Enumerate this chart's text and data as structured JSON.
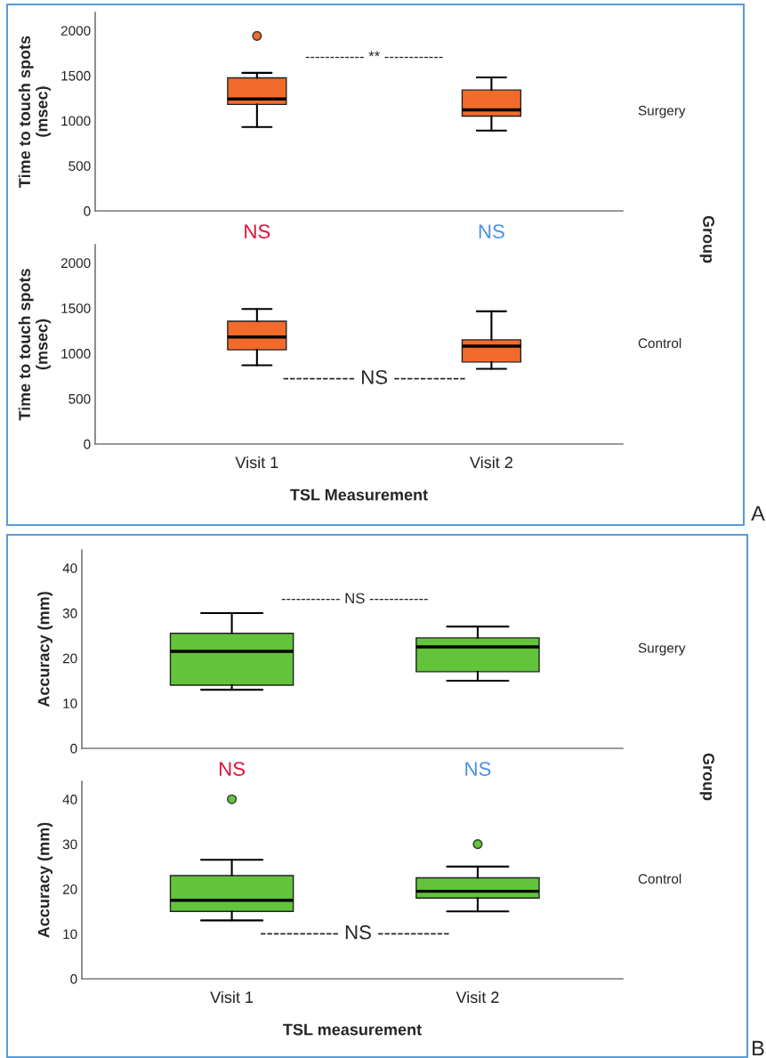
{
  "chart_data": [
    {
      "type": "box",
      "categories": [
        null,
        null
      ],
      "ylabel": "Time to touch spots\n(msec)",
      "ylim": [
        0,
        2200
      ],
      "yticks": [
        0,
        500,
        1000,
        1500,
        2000
      ],
      "tick_labels": "y",
      "grid": false,
      "series": [
        {
          "color": "#f26b2a",
          "boxes": [
            {
              "low": 930,
              "q1": 1180,
              "median": 1240,
              "q3": 1475,
              "high": 1530,
              "outliers": [
                1940
              ]
            },
            {
              "low": 890,
              "q1": 1050,
              "median": 1120,
              "q3": 1340,
              "high": 1480
            }
          ]
        }
      ],
      "annotations": [
        "------------ ** ------------",
        "Surgery",
        "Group",
        "NS",
        "NS"
      ]
    },
    {
      "type": "box",
      "categories": [
        "Visit 1",
        "Visit 2"
      ],
      "xlabel": "TSL Measurement",
      "ylabel": "Time to touch spots\n(msec)",
      "ylim": [
        0,
        2200
      ],
      "yticks": [
        0,
        500,
        1000,
        1500,
        2000
      ],
      "grid": false,
      "series": [
        {
          "color": "#f26b2a",
          "boxes": [
            {
              "low": 870,
              "q1": 1040,
              "median": 1180,
              "q3": 1355,
              "high": 1490
            },
            {
              "low": 830,
              "q1": 905,
              "median": 1080,
              "q3": 1150,
              "high": 1465
            }
          ]
        }
      ],
      "annotations": [
        "----------- NS -----------",
        "Control",
        "A"
      ]
    },
    {
      "type": "box",
      "categories": [
        null,
        null
      ],
      "ylabel": "Accuracy (mm)",
      "ylim": [
        0,
        44
      ],
      "yticks": [
        0,
        10,
        20,
        30,
        40
      ],
      "tick_labels": "y",
      "grid": false,
      "series": [
        {
          "color": "#62c43a",
          "boxes": [
            {
              "low": 13,
              "q1": 14,
              "median": 21.5,
              "q3": 25.5,
              "high": 30
            },
            {
              "low": 15,
              "q1": 17,
              "median": 22.5,
              "q3": 24.5,
              "high": 27
            }
          ]
        }
      ],
      "annotations": [
        "------------ NS ------------",
        "Surgery",
        "Group",
        "NS",
        "NS"
      ]
    },
    {
      "type": "box",
      "categories": [
        "Visit 1",
        "Visit 2"
      ],
      "xlabel": "TSL measurement",
      "ylabel": "Accuracy (mm)",
      "ylim": [
        0,
        44
      ],
      "yticks": [
        0,
        10,
        20,
        30,
        40
      ],
      "grid": false,
      "series": [
        {
          "color": "#62c43a",
          "boxes": [
            {
              "low": 13,
              "q1": 15,
              "median": 17.5,
              "q3": 23,
              "high": 26.5,
              "outliers": [
                40
              ]
            },
            {
              "low": 15,
              "q1": 18,
              "median": 19.5,
              "q3": 22.5,
              "high": 25,
              "outliers": [
                30
              ]
            }
          ]
        }
      ],
      "annotations": [
        "------------ NS -----------",
        "Control",
        "B"
      ]
    }
  ]
}
